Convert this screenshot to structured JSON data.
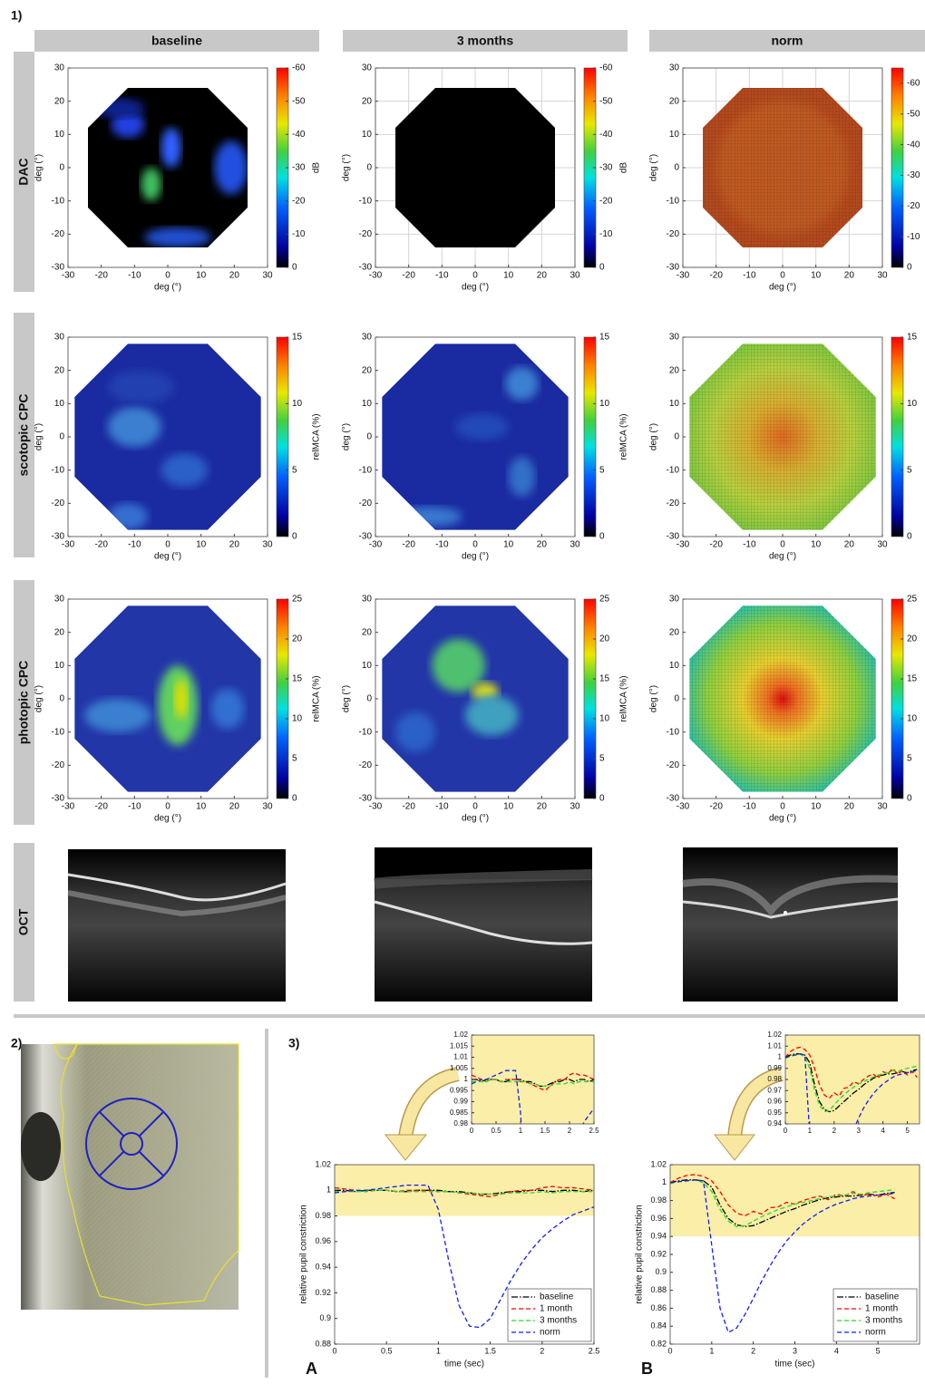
{
  "labels": {
    "part1": "1)",
    "part2": "2)",
    "part3": "3)"
  },
  "columns": [
    "baseline",
    "3 months",
    "norm"
  ],
  "rows": [
    "DAC",
    "scotopic CPC",
    "photopic CPC",
    "OCT"
  ],
  "heatmap_rows": [
    {
      "xlabel": "deg (°)",
      "ylabel": "deg (°)",
      "xlim": [
        -30,
        30
      ],
      "xticks": [
        -30,
        -20,
        -10,
        0,
        10,
        20,
        30
      ],
      "ylim": [
        -30,
        30
      ],
      "yticks": [
        -30,
        -20,
        -10,
        0,
        10,
        20,
        30
      ],
      "colorbar_label": "dB",
      "colorbar_ticks": [
        0,
        -10,
        -20,
        -30,
        -40,
        -50,
        -60
      ],
      "panels": [
        {
          "colorbar_lim": [
            0,
            -60
          ],
          "grid": false
        },
        {
          "colorbar_lim": [
            0,
            -60
          ],
          "grid": true
        },
        {
          "colorbar_lim": [
            0,
            -65
          ],
          "grid": true
        }
      ]
    },
    {
      "xlabel": "deg (°)",
      "ylabel": "deg (°)",
      "xlim": [
        -30,
        30
      ],
      "xticks": [
        -30,
        -20,
        -10,
        0,
        10,
        20,
        30
      ],
      "ylim": [
        -30,
        30
      ],
      "yticks": [
        -30,
        -20,
        -10,
        0,
        10,
        20,
        30
      ],
      "colorbar_label": "relMCA (%)",
      "colorbar_ticks": [
        0,
        5,
        10,
        15
      ],
      "panels": [
        {
          "colorbar_lim": [
            0,
            15
          ],
          "grid": false
        },
        {
          "colorbar_lim": [
            0,
            15
          ],
          "grid": false
        },
        {
          "colorbar_lim": [
            0,
            15
          ],
          "grid": false
        }
      ]
    },
    {
      "xlabel": "deg (°)",
      "ylabel": "deg (°)",
      "xlim": [
        -30,
        30
      ],
      "xticks": [
        -30,
        -20,
        -10,
        0,
        10,
        20,
        30
      ],
      "ylim": [
        -30,
        30
      ],
      "yticks": [
        -30,
        -20,
        -10,
        0,
        10,
        20,
        30
      ],
      "colorbar_label": "relMCA (%)",
      "colorbar_ticks": [
        0,
        5,
        10,
        15,
        20,
        25
      ],
      "panels": [
        {
          "colorbar_lim": [
            0,
            25
          ],
          "grid": false
        },
        {
          "colorbar_lim": [
            0,
            25
          ],
          "grid": false
        },
        {
          "colorbar_lim": [
            0,
            25
          ],
          "grid": false
        }
      ]
    }
  ],
  "chart_data": [
    {
      "type": "line",
      "label": "A",
      "xlabel": "time (sec)",
      "ylabel": "relative pupil constriction",
      "x": [
        0,
        0.1,
        0.2,
        0.3,
        0.4,
        0.5,
        0.6,
        0.7,
        0.8,
        0.9,
        1.0,
        1.1,
        1.2,
        1.3,
        1.4,
        1.5,
        1.6,
        1.7,
        1.8,
        1.9,
        2.0,
        2.1,
        2.2,
        2.3,
        2.4,
        2.5
      ],
      "xlim": [
        0,
        2.5
      ],
      "xticks": [
        0,
        0.5,
        1,
        1.5,
        2,
        2.5
      ],
      "ylim": [
        0.88,
        1.02
      ],
      "yticks": [
        0.88,
        0.9,
        0.92,
        0.94,
        0.96,
        0.98,
        1,
        1.02
      ],
      "band": [
        0.98,
        1.02
      ],
      "legend": "lower right",
      "series": [
        {
          "name": "baseline",
          "color": "#000000",
          "values": [
            1.0,
            1.0,
            0.999,
            1.0,
            1.0,
            1.0,
            0.999,
            0.999,
            1.0,
            1.0,
            1.0,
            0.999,
            0.999,
            0.998,
            0.997,
            0.997,
            0.998,
            0.999,
            0.999,
            1.0,
            1.0,
            0.999,
            1.0,
            1.0,
            0.999,
            1.0
          ]
        },
        {
          "name": "1 month",
          "color": "#ff0000",
          "values": [
            1.002,
            1.001,
            1.0,
            0.999,
            1.0,
            1.0,
            0.999,
            1.0,
            1.0,
            1.0,
            0.999,
            0.999,
            0.998,
            0.997,
            0.996,
            0.995,
            0.997,
            0.999,
            1.0,
            1.0,
            1.002,
            1.003,
            1.002,
            1.002,
            1.001,
            1.0
          ]
        },
        {
          "name": "3 months",
          "color": "#22dd22",
          "values": [
            0.999,
            0.999,
            0.999,
            0.999,
            1.0,
            1.0,
            0.999,
            0.999,
            0.999,
            0.999,
            0.999,
            0.999,
            0.998,
            0.998,
            0.997,
            0.997,
            0.997,
            0.998,
            0.998,
            0.998,
            0.999,
            0.998,
            0.999,
            0.999,
            0.999,
            0.999
          ]
        },
        {
          "name": "norm",
          "color": "#1020ee",
          "values": [
            0.998,
            0.999,
            1.0,
            1.0,
            1.001,
            1.002,
            1.003,
            1.004,
            1.004,
            1.004,
            0.985,
            0.945,
            0.91,
            0.894,
            0.893,
            0.9,
            0.915,
            0.93,
            0.943,
            0.954,
            0.963,
            0.97,
            0.976,
            0.981,
            0.984,
            0.987
          ]
        }
      ],
      "inset": {
        "xlim": [
          0,
          2.5
        ],
        "xticks": [
          0,
          0.5,
          1,
          1.5,
          2,
          2.5
        ],
        "ylim": [
          0.98,
          1.02
        ],
        "yticks": [
          0.98,
          0.985,
          0.99,
          0.995,
          1,
          1.005,
          1.01,
          1.015,
          1.02
        ]
      }
    },
    {
      "type": "line",
      "label": "B",
      "xlabel": "time (sec)",
      "ylabel": "relative pupil constriction",
      "x": [
        0,
        0.2,
        0.4,
        0.6,
        0.8,
        1.0,
        1.2,
        1.4,
        1.6,
        1.8,
        2.0,
        2.2,
        2.4,
        2.6,
        2.8,
        3.0,
        3.2,
        3.4,
        3.6,
        3.8,
        4.0,
        4.2,
        4.4,
        4.6,
        4.8,
        5.0,
        5.2,
        5.4
      ],
      "xlim": [
        0,
        6
      ],
      "xticks": [
        0,
        1,
        2,
        3,
        4,
        5
      ],
      "ylim": [
        0.82,
        1.02
      ],
      "yticks": [
        0.82,
        0.84,
        0.86,
        0.88,
        0.9,
        0.92,
        0.94,
        0.96,
        0.98,
        1,
        1.02
      ],
      "band": [
        0.94,
        1.02
      ],
      "legend": "lower right",
      "series": [
        {
          "name": "baseline",
          "color": "#000000",
          "values": [
            1.0,
            1.002,
            1.003,
            1.003,
            1.002,
            0.995,
            0.975,
            0.96,
            0.953,
            0.951,
            0.952,
            0.956,
            0.96,
            0.964,
            0.968,
            0.971,
            0.975,
            0.978,
            0.981,
            0.983,
            0.984,
            0.985,
            0.985,
            0.986,
            0.987,
            0.986,
            0.988,
            0.989
          ]
        },
        {
          "name": "1 month",
          "color": "#ff0000",
          "values": [
            1.0,
            1.005,
            1.008,
            1.009,
            1.007,
            1.002,
            0.99,
            0.975,
            0.966,
            0.963,
            0.968,
            0.965,
            0.972,
            0.973,
            0.978,
            0.976,
            0.98,
            0.983,
            0.985,
            0.981,
            0.987,
            0.985,
            0.99,
            0.985,
            0.988,
            0.984,
            0.987,
            0.982
          ]
        },
        {
          "name": "3 months",
          "color": "#22dd22",
          "values": [
            0.999,
            1.001,
            1.002,
            1.003,
            1.0,
            0.99,
            0.97,
            0.957,
            0.951,
            0.952,
            0.957,
            0.962,
            0.966,
            0.97,
            0.973,
            0.976,
            0.978,
            0.98,
            0.982,
            0.984,
            0.985,
            0.986,
            0.988,
            0.987,
            0.989,
            0.99,
            0.991,
            0.992
          ]
        },
        {
          "name": "norm",
          "color": "#1020ee",
          "values": [
            1.0,
            1.001,
            1.002,
            1.003,
            1.002,
            0.93,
            0.86,
            0.833,
            0.838,
            0.853,
            0.871,
            0.89,
            0.907,
            0.922,
            0.935,
            0.945,
            0.954,
            0.961,
            0.967,
            0.972,
            0.976,
            0.979,
            0.982,
            0.984,
            0.985,
            0.986,
            0.987,
            0.988
          ]
        }
      ],
      "inset": {
        "xlim": [
          0,
          5.5
        ],
        "xticks": [
          0,
          1,
          2,
          3,
          4,
          5
        ],
        "ylim": [
          0.94,
          1.02
        ],
        "yticks": [
          0.94,
          0.95,
          0.96,
          0.97,
          0.98,
          0.99,
          1,
          1.01,
          1.02
        ]
      }
    }
  ]
}
